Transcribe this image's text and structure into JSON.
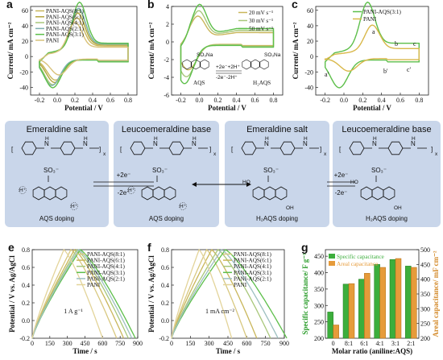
{
  "panels": {
    "a": {
      "letter": "a",
      "xlabel": "Potential / V",
      "ylabel": "Current/ mA cm⁻²",
      "xticks": [
        "-0.2",
        "0.0",
        "0.2",
        "0.4",
        "0.6",
        "0.8"
      ],
      "yticks": [
        "60",
        "40",
        "20",
        "0",
        "-20",
        "-40"
      ],
      "legend": [
        "PANI-AQS(8:1)",
        "PANI-AQS(6:1)",
        "PANI-AQS(4:1)",
        "PANI-AQS(2:1)",
        "PANI-AQS(3:1)",
        "PANI"
      ]
    },
    "b": {
      "letter": "b",
      "xlabel": "Potential / V",
      "ylabel": "Current/ mA cm⁻²",
      "xticks": [
        "-0.2",
        "0.0",
        "0.2",
        "0.4",
        "0.6",
        "0.8"
      ],
      "yticks": [
        "4",
        "2",
        "0",
        "-2",
        "-4",
        "-6"
      ],
      "legend": [
        "20 mV s⁻¹",
        "30 mV s⁻¹",
        "50 mV s⁻¹"
      ],
      "reaction_fwd": "+2e⁻+2H⁺",
      "reaction_rev": "-2e⁻-2H⁺",
      "left_label": "AQS",
      "right_label": "H₂AQS",
      "so3na": "SO₃Na"
    },
    "c": {
      "letter": "c",
      "xlabel": "Potential / V",
      "ylabel": "Current/ mA cm⁻²",
      "xticks": [
        "-0.2",
        "0.0",
        "0.2",
        "0.4",
        "0.6",
        "0.8"
      ],
      "yticks": [
        "60",
        "40",
        "20",
        "0",
        "-20",
        "-40"
      ],
      "legend": [
        "PANI-AQS(3:1)",
        "PANI"
      ],
      "peaks": [
        "a",
        "b",
        "c",
        "a'",
        "b'",
        "c'"
      ]
    },
    "d": {
      "letter": "d",
      "titles": [
        "Emeraldine salt",
        "Leucoemeraldine base",
        "Emeraldine salt",
        "Leucoemeraldine base"
      ],
      "dopings": [
        "AQS doping",
        "AQS doping",
        "H₂AQS doping",
        "H₂AQS doping"
      ],
      "arrow_fwd": "+2e⁻",
      "arrow_rev": "-2e⁻",
      "so3": "SO₃⁻",
      "hplus": "H⁺",
      "oh": "OH",
      "ho": "HO",
      "nh": "N",
      "h": "H",
      "x": "x"
    },
    "e": {
      "letter": "e",
      "xlabel": "Time / s",
      "ylabel": "Potential / V vs. Ag/AgCl",
      "xticks": [
        "0",
        "150",
        "300",
        "450",
        "600",
        "750",
        "900"
      ],
      "yticks": [
        "0.8",
        "0.6",
        "0.4",
        "0.2",
        "0.0",
        "-0.2"
      ],
      "legend": [
        "PANI-AQS(8:1)",
        "PANI-AQS(6:1)",
        "PANI-AQS(4:1)",
        "PANI-AQS(3:1)",
        "PANI-AQS(2:1)",
        "PANI"
      ],
      "annotation": "1 A g⁻¹"
    },
    "f": {
      "letter": "f",
      "xlabel": "Time / s",
      "ylabel": "Potential / V vs. Ag/AgCl",
      "xticks": [
        "0",
        "150",
        "300",
        "450",
        "600",
        "750",
        "900"
      ],
      "yticks": [
        "0.8",
        "0.6",
        "0.4",
        "0.2",
        "0.0",
        "-0.2"
      ],
      "legend": [
        "PANI-AQS(8:1)",
        "PANI-AQS(6:1)",
        "PANI-AQS(4:1)",
        "PANI-AQS(3:1)",
        "PANI-AQS(2:1)",
        "PANI"
      ],
      "annotation": "1 mA cm⁻²"
    },
    "g": {
      "letter": "g",
      "xlabel": "Molar ratio (aniline:AQS)",
      "ylabel_left": "Specific capacitance/ F g⁻¹",
      "ylabel_right": "Areal capacitance/ mF cm⁻²",
      "legend": [
        "Specific capacitance",
        "Areal capacitance"
      ],
      "left_ticks": [
        "450",
        "400",
        "350",
        "300",
        "250",
        "200"
      ],
      "right_ticks": [
        "500",
        "450",
        "400",
        "350",
        "300",
        "250",
        "200"
      ]
    }
  },
  "chart_data": [
    {
      "panel": "a",
      "type": "line",
      "x_range": [
        -0.3,
        0.9
      ],
      "y_range": [
        -50,
        65
      ],
      "series": [
        {
          "name": "PANI-AQS(8:1)",
          "color": "#c9b65a",
          "peak_up": [
            0.22,
            40
          ],
          "low": [
            -0.02,
            -30
          ],
          "scale": 0.8
        },
        {
          "name": "PANI-AQS(6:1)",
          "color": "#b3a33a",
          "peak_up": [
            0.23,
            45
          ],
          "low": [
            -0.03,
            -33
          ],
          "scale": 0.88
        },
        {
          "name": "PANI-AQS(4:1)",
          "color": "#a8c77a",
          "peak_up": [
            0.24,
            48
          ],
          "low": [
            -0.05,
            -36
          ],
          "scale": 0.92
        },
        {
          "name": "PANI-AQS(2:1)",
          "color": "#7fb0b0",
          "peak_up": [
            0.24,
            50
          ],
          "low": [
            -0.06,
            -37
          ],
          "scale": 0.95
        },
        {
          "name": "PANI-AQS(3:1)",
          "color": "#5dbf4a",
          "peak_up": [
            0.25,
            57
          ],
          "low": [
            -0.05,
            -40
          ],
          "scale": 1.0
        },
        {
          "name": "PANI",
          "color": "#d9c27a",
          "peak_up": [
            0.2,
            36
          ],
          "low": [
            0.02,
            -23
          ],
          "scale": 0.7
        }
      ]
    },
    {
      "panel": "b",
      "type": "line",
      "x_range": [
        -0.3,
        0.9
      ],
      "y_range": [
        -6,
        4
      ],
      "series": [
        {
          "name": "20 mV s⁻¹",
          "color": "#c9b65a",
          "peak_up": [
            -0.02,
            2.5
          ],
          "low": [
            -0.12,
            -3.2
          ],
          "scale": 0.7
        },
        {
          "name": "30 mV s⁻¹",
          "color": "#a8c77a",
          "peak_up": [
            -0.01,
            3.0
          ],
          "low": [
            -0.14,
            -4.0
          ],
          "scale": 0.85
        },
        {
          "name": "50 mV s⁻¹",
          "color": "#5dbf4a",
          "peak_up": [
            0.0,
            3.6
          ],
          "low": [
            -0.16,
            -4.8
          ],
          "scale": 1.0
        }
      ]
    },
    {
      "panel": "c",
      "type": "line",
      "x_range": [
        -0.3,
        0.9
      ],
      "y_range": [
        -50,
        65
      ],
      "series": [
        {
          "name": "PANI-AQS(3:1)",
          "color": "#5dbf4a",
          "peak_up": [
            0.25,
            57
          ],
          "low": [
            -0.05,
            -40
          ],
          "scale": 1.0
        },
        {
          "name": "PANI",
          "color": "#d9b84a",
          "peak_up": [
            0.3,
            32
          ],
          "low": [
            0.05,
            -18
          ],
          "scale": 0.6
        }
      ]
    },
    {
      "panel": "e",
      "type": "line",
      "x_range": [
        0,
        900
      ],
      "y_range": [
        -0.2,
        0.8
      ],
      "series": [
        {
          "name": "PANI-AQS(8:1)",
          "color": "#d8c880",
          "peak": 330,
          "end": 720
        },
        {
          "name": "PANI-AQS(6:1)",
          "color": "#c9b65a",
          "peak": 360,
          "end": 780
        },
        {
          "name": "PANI-AQS(4:1)",
          "color": "#a8c77a",
          "peak": 380,
          "end": 820
        },
        {
          "name": "PANI-AQS(3:1)",
          "color": "#5dbf4a",
          "peak": 410,
          "end": 880
        },
        {
          "name": "PANI-AQS(2:1)",
          "color": "#9dbfc0",
          "peak": 395,
          "end": 850
        },
        {
          "name": "PANI",
          "color": "#e3d49a",
          "peak": 270,
          "end": 600
        }
      ]
    },
    {
      "panel": "f",
      "type": "line",
      "x_range": [
        0,
        900
      ],
      "y_range": [
        -0.2,
        0.8
      ],
      "series": [
        {
          "name": "PANI-AQS(8:1)",
          "color": "#d8c880",
          "peak": 280,
          "end": 600
        },
        {
          "name": "PANI-AQS(6:1)",
          "color": "#c9b65a",
          "peak": 320,
          "end": 680
        },
        {
          "name": "PANI-AQS(4:1)",
          "color": "#a8c77a",
          "peak": 370,
          "end": 790
        },
        {
          "name": "PANI-AQS(3:1)",
          "color": "#5dbf4a",
          "peak": 430,
          "end": 920
        },
        {
          "name": "PANI-AQS(2:1)",
          "color": "#9dbfc0",
          "peak": 400,
          "end": 850
        },
        {
          "name": "PANI",
          "color": "#e3d49a",
          "peak": 220,
          "end": 480
        }
      ]
    },
    {
      "panel": "g",
      "type": "bar",
      "categories": [
        "0",
        "8:1",
        "6:1",
        "4:1",
        "3:1",
        "2:1"
      ],
      "series": [
        {
          "name": "Specific capacitance",
          "color": "#3cae3c",
          "values": [
            280,
            365,
            380,
            425,
            440,
            420
          ],
          "axis": "left",
          "ylim": [
            200,
            470
          ]
        },
        {
          "name": "Areal capacitance",
          "color": "#e69b3a",
          "values": [
            245,
            385,
            420,
            440,
            470,
            440
          ],
          "axis": "right",
          "ylim": [
            200,
            500
          ]
        }
      ]
    }
  ]
}
